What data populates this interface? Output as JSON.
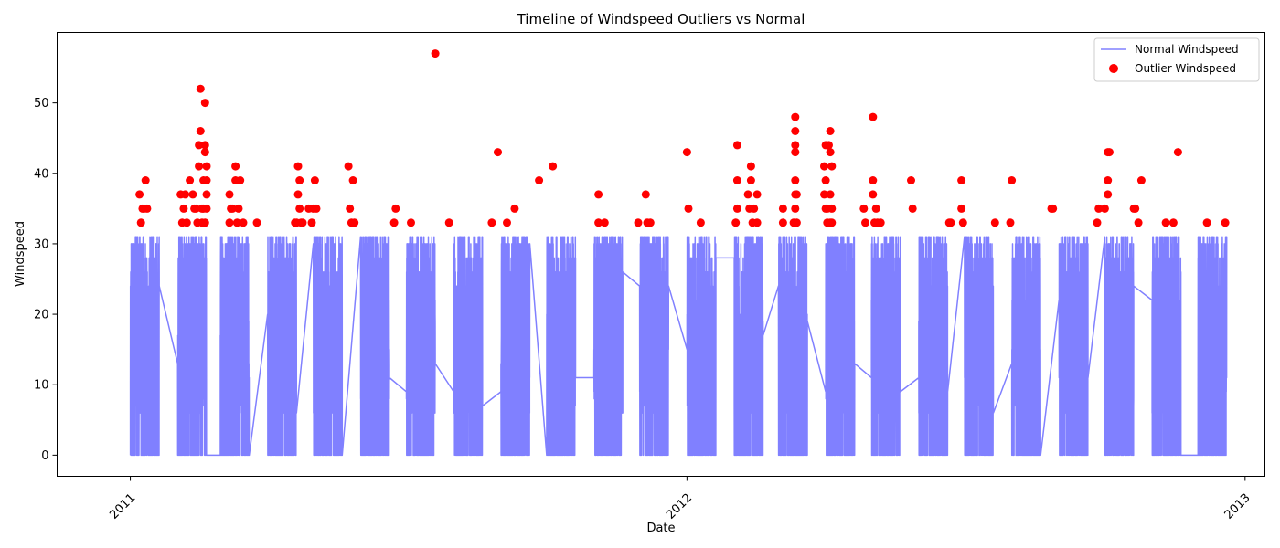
{
  "chart_data": {
    "type": "line",
    "title": "Timeline of Windspeed Outliers vs Normal",
    "xlabel": "Date",
    "ylabel": "Windspeed",
    "xlim": [
      "2010-11-14",
      "2013-01-14"
    ],
    "ylim": [
      -3,
      60
    ],
    "x_ticks": [
      "2011",
      "2012",
      "2013"
    ],
    "x_tick_dates": [
      "2011-01-01",
      "2012-01-01",
      "2013-01-01"
    ],
    "y_ticks": [
      0,
      10,
      20,
      30,
      40,
      50
    ],
    "grid": false,
    "legend_position": "top-right",
    "series": [
      {
        "name": "Normal Windspeed",
        "kind": "line",
        "color": "#8080ff",
        "segments": [
          [
            "2011-01-01",
            "2011-01-19"
          ],
          [
            "2011-02-01",
            "2011-02-19"
          ],
          [
            "2011-03-01",
            "2011-03-19"
          ],
          [
            "2011-04-01",
            "2011-04-19"
          ],
          [
            "2011-05-01",
            "2011-05-19"
          ],
          [
            "2011-06-01",
            "2011-06-19"
          ],
          [
            "2011-07-01",
            "2011-07-19"
          ],
          [
            "2011-08-01",
            "2011-08-19"
          ],
          [
            "2011-09-01",
            "2011-09-19"
          ],
          [
            "2011-10-01",
            "2011-10-19"
          ],
          [
            "2011-11-01",
            "2011-11-19"
          ],
          [
            "2011-12-01",
            "2011-12-19"
          ],
          [
            "2012-01-01",
            "2012-01-19"
          ],
          [
            "2012-02-01",
            "2012-02-19"
          ],
          [
            "2012-03-01",
            "2012-03-19"
          ],
          [
            "2012-04-01",
            "2012-04-19"
          ],
          [
            "2012-05-01",
            "2012-05-19"
          ],
          [
            "2012-06-01",
            "2012-06-19"
          ],
          [
            "2012-07-01",
            "2012-07-19"
          ],
          [
            "2012-08-01",
            "2012-08-19"
          ],
          [
            "2012-09-01",
            "2012-09-19"
          ],
          [
            "2012-10-01",
            "2012-10-19"
          ],
          [
            "2012-11-01",
            "2012-11-19"
          ],
          [
            "2012-12-01",
            "2012-12-19"
          ]
        ],
        "range": [
          0,
          31
        ]
      },
      {
        "name": "Outlier Windspeed",
        "kind": "scatter",
        "color": "#ff0000",
        "points": [
          [
            "2011-01-07",
            37
          ],
          [
            "2011-01-08",
            33
          ],
          [
            "2011-01-09",
            35
          ],
          [
            "2011-01-10",
            35
          ],
          [
            "2011-01-11",
            39
          ],
          [
            "2011-01-12",
            35
          ],
          [
            "2011-02-03",
            37
          ],
          [
            "2011-02-04",
            33
          ],
          [
            "2011-02-05",
            35
          ],
          [
            "2011-02-06",
            37
          ],
          [
            "2011-02-07",
            33
          ],
          [
            "2011-02-09",
            39
          ],
          [
            "2011-02-11",
            37
          ],
          [
            "2011-02-12",
            35
          ],
          [
            "2011-02-13",
            35
          ],
          [
            "2011-02-14",
            33
          ],
          [
            "2011-02-15",
            41
          ],
          [
            "2011-02-15",
            44
          ],
          [
            "2011-02-16",
            46
          ],
          [
            "2011-02-16",
            52
          ],
          [
            "2011-02-17",
            35
          ],
          [
            "2011-02-17",
            33
          ],
          [
            "2011-02-18",
            39
          ],
          [
            "2011-02-18",
            35
          ],
          [
            "2011-02-19",
            50
          ],
          [
            "2011-02-19",
            43
          ],
          [
            "2011-02-19",
            33
          ],
          [
            "2011-02-19",
            44
          ],
          [
            "2011-02-20",
            39
          ],
          [
            "2011-02-20",
            41
          ],
          [
            "2011-02-20",
            37
          ],
          [
            "2011-02-20",
            35
          ],
          [
            "2011-03-07",
            37
          ],
          [
            "2011-03-07",
            33
          ],
          [
            "2011-03-08",
            35
          ],
          [
            "2011-03-09",
            35
          ],
          [
            "2011-03-11",
            41
          ],
          [
            "2011-03-11",
            39
          ],
          [
            "2011-03-12",
            33
          ],
          [
            "2011-03-13",
            35
          ],
          [
            "2011-03-14",
            39
          ],
          [
            "2011-03-16",
            33
          ],
          [
            "2011-03-25",
            33
          ],
          [
            "2011-04-19",
            33
          ],
          [
            "2011-04-20",
            33
          ],
          [
            "2011-04-21",
            41
          ],
          [
            "2011-04-21",
            37
          ],
          [
            "2011-04-22",
            39
          ],
          [
            "2011-04-22",
            35
          ],
          [
            "2011-04-23",
            33
          ],
          [
            "2011-04-24",
            33
          ],
          [
            "2011-04-28",
            35
          ],
          [
            "2011-04-30",
            33
          ],
          [
            "2011-05-01",
            35
          ],
          [
            "2011-05-02",
            39
          ],
          [
            "2011-05-03",
            35
          ],
          [
            "2011-05-24",
            41
          ],
          [
            "2011-05-25",
            35
          ],
          [
            "2011-05-26",
            33
          ],
          [
            "2011-05-27",
            39
          ],
          [
            "2011-05-28",
            33
          ],
          [
            "2011-06-23",
            33
          ],
          [
            "2011-06-24",
            35
          ],
          [
            "2011-07-04",
            33
          ],
          [
            "2011-07-20",
            57
          ],
          [
            "2011-07-29",
            33
          ],
          [
            "2011-08-26",
            33
          ],
          [
            "2011-08-30",
            43
          ],
          [
            "2011-09-05",
            33
          ],
          [
            "2011-09-10",
            35
          ],
          [
            "2011-09-26",
            39
          ],
          [
            "2011-10-05",
            41
          ],
          [
            "2011-11-04",
            37
          ],
          [
            "2011-11-04",
            33
          ],
          [
            "2011-11-08",
            33
          ],
          [
            "2011-11-30",
            33
          ],
          [
            "2011-12-05",
            37
          ],
          [
            "2011-12-06",
            33
          ],
          [
            "2011-12-08",
            33
          ],
          [
            "2012-01-01",
            43
          ],
          [
            "2012-01-02",
            35
          ],
          [
            "2012-01-10",
            33
          ],
          [
            "2012-02-02",
            33
          ],
          [
            "2012-02-03",
            44
          ],
          [
            "2012-02-03",
            39
          ],
          [
            "2012-02-03",
            35
          ],
          [
            "2012-02-10",
            37
          ],
          [
            "2012-02-11",
            35
          ],
          [
            "2012-02-12",
            41
          ],
          [
            "2012-02-12",
            39
          ],
          [
            "2012-02-13",
            33
          ],
          [
            "2012-02-14",
            35
          ],
          [
            "2012-02-16",
            37
          ],
          [
            "2012-02-16",
            33
          ],
          [
            "2012-03-04",
            35
          ],
          [
            "2012-03-04",
            33
          ],
          [
            "2012-03-11",
            33
          ],
          [
            "2012-03-12",
            37
          ],
          [
            "2012-03-12",
            35
          ],
          [
            "2012-03-12",
            39
          ],
          [
            "2012-03-12",
            43
          ],
          [
            "2012-03-12",
            44
          ],
          [
            "2012-03-12",
            46
          ],
          [
            "2012-03-12",
            48
          ],
          [
            "2012-03-13",
            37
          ],
          [
            "2012-03-13",
            33
          ],
          [
            "2012-03-31",
            41
          ],
          [
            "2012-03-31",
            37
          ],
          [
            "2012-04-01",
            44
          ],
          [
            "2012-04-01",
            39
          ],
          [
            "2012-04-01",
            35
          ],
          [
            "2012-04-02",
            33
          ],
          [
            "2012-04-02",
            35
          ],
          [
            "2012-04-03",
            44
          ],
          [
            "2012-04-04",
            46
          ],
          [
            "2012-04-04",
            43
          ],
          [
            "2012-04-04",
            37
          ],
          [
            "2012-04-04",
            33
          ],
          [
            "2012-04-05",
            41
          ],
          [
            "2012-04-05",
            35
          ],
          [
            "2012-04-05",
            33
          ],
          [
            "2012-04-26",
            35
          ],
          [
            "2012-04-27",
            33
          ],
          [
            "2012-05-02",
            37
          ],
          [
            "2012-05-02",
            39
          ],
          [
            "2012-05-02",
            48
          ],
          [
            "2012-05-03",
            33
          ],
          [
            "2012-05-04",
            35
          ],
          [
            "2012-05-05",
            33
          ],
          [
            "2012-05-07",
            33
          ],
          [
            "2012-05-27",
            39
          ],
          [
            "2012-05-28",
            35
          ],
          [
            "2012-06-21",
            33
          ],
          [
            "2012-06-22",
            33
          ],
          [
            "2012-06-29",
            39
          ],
          [
            "2012-06-29",
            35
          ],
          [
            "2012-06-30",
            33
          ],
          [
            "2012-07-21",
            33
          ],
          [
            "2012-07-31",
            33
          ],
          [
            "2012-08-01",
            39
          ],
          [
            "2012-08-27",
            35
          ],
          [
            "2012-08-28",
            35
          ],
          [
            "2012-09-26",
            33
          ],
          [
            "2012-09-27",
            35
          ],
          [
            "2012-10-01",
            35
          ],
          [
            "2012-10-03",
            43
          ],
          [
            "2012-10-03",
            39
          ],
          [
            "2012-10-03",
            37
          ],
          [
            "2012-10-04",
            43
          ],
          [
            "2012-10-20",
            35
          ],
          [
            "2012-10-21",
            35
          ],
          [
            "2012-10-23",
            33
          ],
          [
            "2012-10-25",
            39
          ],
          [
            "2012-11-10",
            33
          ],
          [
            "2012-11-15",
            33
          ],
          [
            "2012-11-18",
            43
          ],
          [
            "2012-12-07",
            33
          ],
          [
            "2012-12-19",
            33
          ]
        ]
      }
    ]
  }
}
